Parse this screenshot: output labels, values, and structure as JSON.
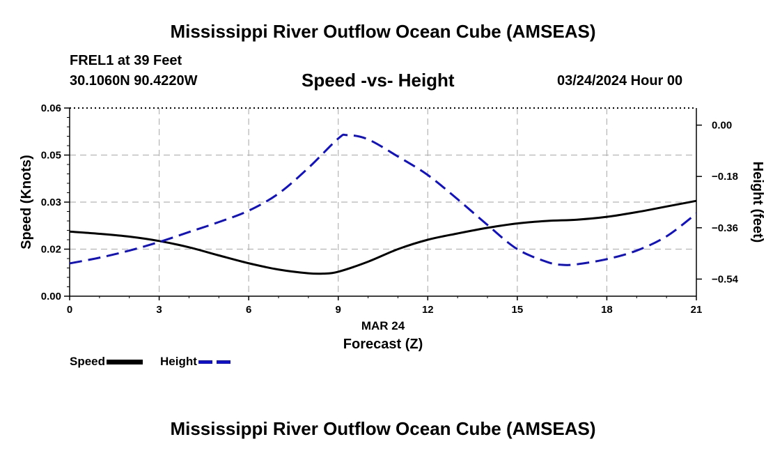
{
  "header": {
    "title": "Mississippi River Outflow Ocean Cube (AMSEAS)",
    "station": "FREL1 at 39 Feet",
    "coords": "30.1060N  90.4220W",
    "subtitle": "Speed -vs- Height",
    "datetime": "03/24/2024 Hour 00"
  },
  "footer": {
    "title": "Mississippi River Outflow Ocean Cube (AMSEAS)"
  },
  "legend": {
    "speed_label": "Speed",
    "height_label": "Height"
  },
  "colors": {
    "speed": "#000000",
    "height": "#1010c8",
    "grid": "#b4b4b4"
  },
  "chart_data": {
    "type": "line",
    "title": "Speed -vs- Height",
    "xlabel": "Forecast (Z)",
    "xsublabel": "MAR 24",
    "ylabel": "Speed (Knots)",
    "y2label": "Height (feet)",
    "xlim": [
      0,
      21
    ],
    "ylim": [
      0,
      0.06
    ],
    "y2lim": [
      -0.6,
      0.06
    ],
    "x_ticks": [
      0,
      3,
      6,
      9,
      12,
      15,
      18,
      21
    ],
    "x_tick_labels": [
      "0",
      "3",
      "6",
      "9",
      "12",
      "15",
      "18",
      "21"
    ],
    "y_ticks": [
      0,
      0.015,
      0.03,
      0.045,
      0.06
    ],
    "y_tick_labels": [
      "0.00",
      "0.02",
      "0.03",
      "0.05",
      "0.06"
    ],
    "y2_ticks": [
      0.0,
      -0.18,
      -0.36,
      -0.54
    ],
    "y2_tick_labels": [
      "0.00",
      "−0.18",
      "−0.36",
      "−0.54"
    ],
    "grid": true,
    "series": [
      {
        "name": "Speed",
        "axis": "left",
        "style": "solid",
        "x": [
          0,
          1,
          2,
          3,
          4,
          5,
          6,
          7,
          8,
          8.5,
          9,
          10,
          11,
          12,
          13,
          14,
          15,
          16,
          17,
          18,
          19,
          20,
          21
        ],
        "values": [
          0.0206,
          0.0199,
          0.019,
          0.0176,
          0.0156,
          0.013,
          0.0105,
          0.0085,
          0.0073,
          0.0072,
          0.0078,
          0.011,
          0.015,
          0.018,
          0.02,
          0.0218,
          0.0232,
          0.024,
          0.0244,
          0.0253,
          0.0268,
          0.0286,
          0.0304
        ]
      },
      {
        "name": "Height",
        "axis": "right",
        "style": "dashed",
        "x": [
          0,
          1,
          2,
          3,
          4,
          5,
          6,
          7,
          8,
          9,
          9.3,
          10,
          11,
          12,
          13,
          14,
          15,
          16,
          16.5,
          17,
          18,
          19,
          20,
          21
        ],
        "values": [
          -0.485,
          -0.465,
          -0.44,
          -0.41,
          -0.375,
          -0.34,
          -0.3,
          -0.24,
          -0.15,
          -0.047,
          -0.035,
          -0.05,
          -0.11,
          -0.175,
          -0.26,
          -0.35,
          -0.435,
          -0.48,
          -0.49,
          -0.488,
          -0.47,
          -0.44,
          -0.39,
          -0.31
        ]
      }
    ]
  }
}
